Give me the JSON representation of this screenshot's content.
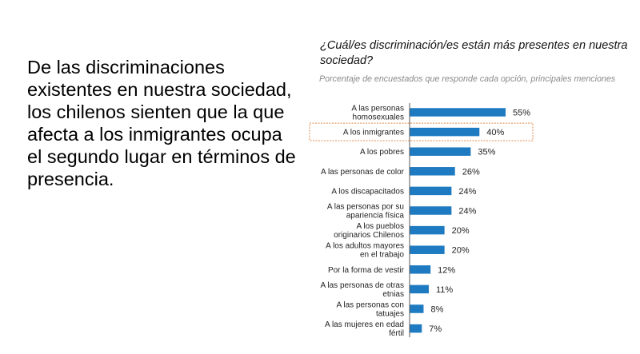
{
  "intro_text": "De las discriminaciones existentes en nuestra sociedad, los chilenos sienten que la que afecta a los inmigrantes ocupa el segundo lugar en términos de presencia.",
  "chart_data": {
    "type": "bar",
    "orientation": "horizontal",
    "title": "¿Cuál/es discriminación/es están más presentes en nuestra sociedad?",
    "subtitle": "Porcentaje de encuestados que responde cada opción, principales menciones",
    "categories": [
      [
        "A las personas",
        "homosexuales"
      ],
      [
        "A los inmigrantes"
      ],
      [
        "A los pobres"
      ],
      [
        "A las personas de color"
      ],
      [
        "A los discapacitados"
      ],
      [
        "A las personas por su",
        "apariencia física"
      ],
      [
        "A los pueblos",
        "originarios Chilenos"
      ],
      [
        "A los adultos mayores",
        "en el trabajo"
      ],
      [
        "Por la forma de vestir"
      ],
      [
        "A las personas de otras",
        "etnias"
      ],
      [
        "A las personas con",
        "tatuajes"
      ],
      [
        "A las mujeres en edad",
        "fértil"
      ]
    ],
    "values": [
      55,
      40,
      35,
      26,
      24,
      24,
      20,
      20,
      12,
      11,
      8,
      7
    ],
    "value_labels": [
      "55%",
      "40%",
      "35%",
      "26%",
      "24%",
      "24%",
      "20%",
      "20%",
      "12%",
      "11%",
      "8%",
      "7%"
    ],
    "highlighted_index": 1,
    "bar_color": "#1f7bc1",
    "highlight_border_color": "#e08a4a",
    "grid": false,
    "legend": "none"
  }
}
